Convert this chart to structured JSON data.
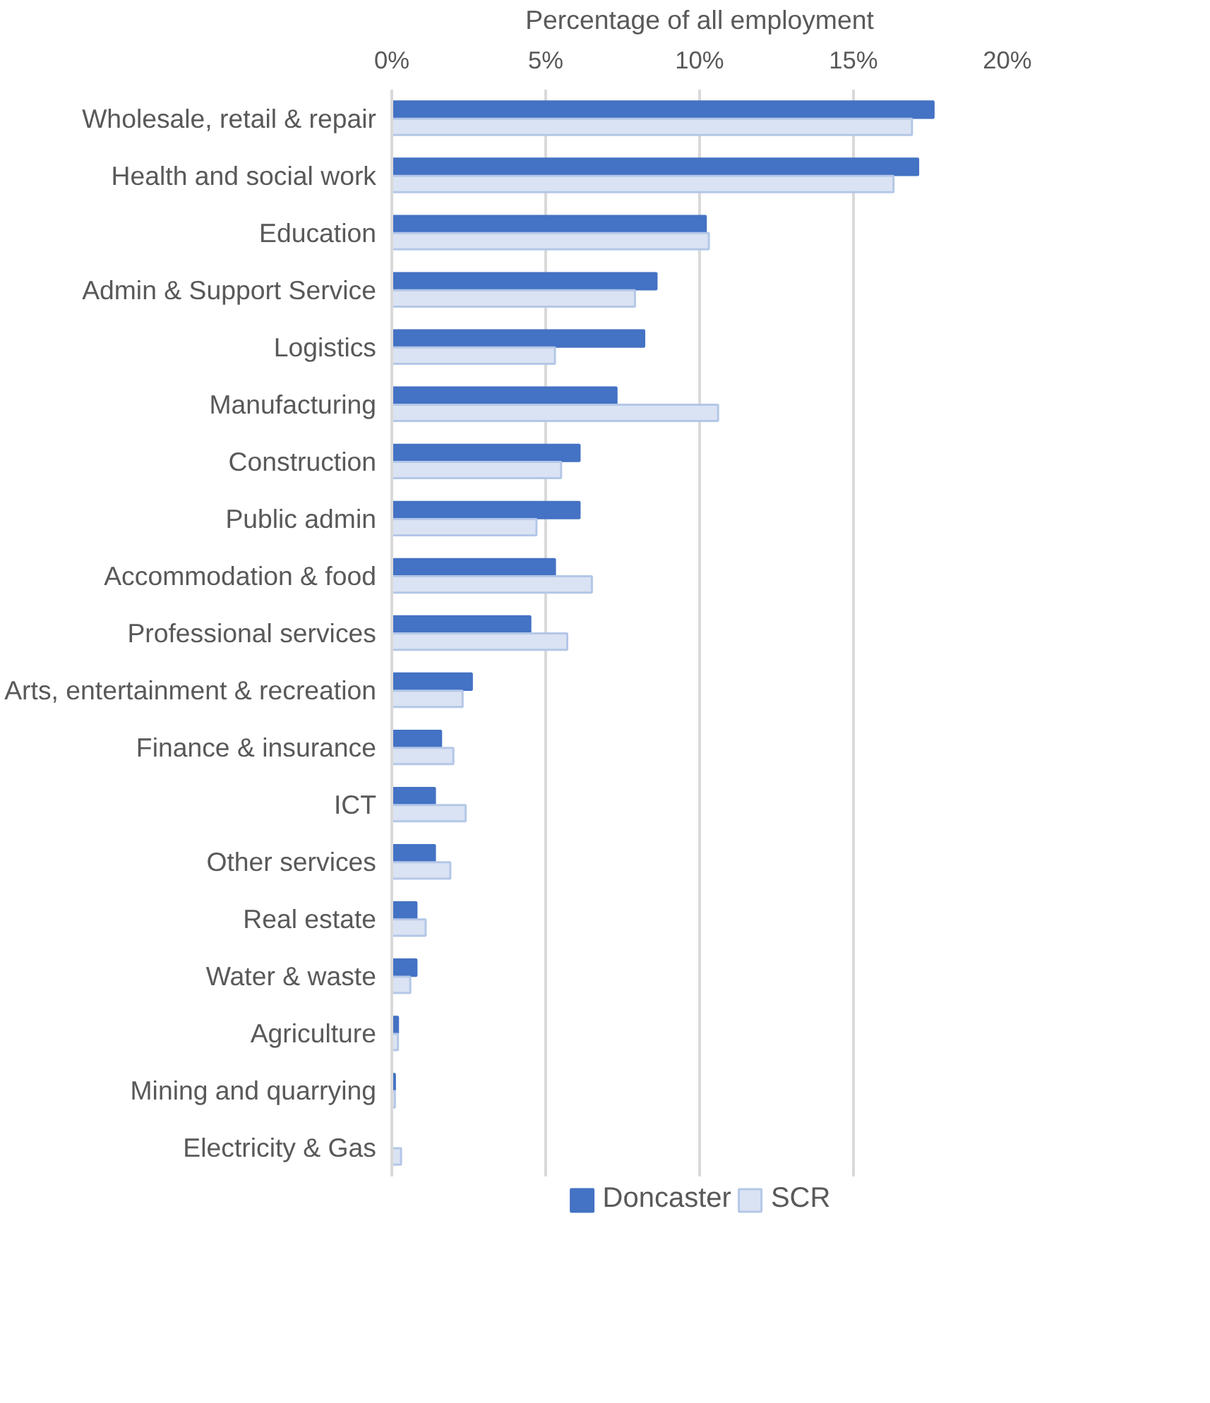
{
  "chart_data": {
    "type": "bar",
    "orientation": "horizontal",
    "xlabel": "Percentage of all employment",
    "categories": [
      "Wholesale, retail & repair",
      "Health and social work",
      "Education",
      "Admin & Support Service",
      "Logistics",
      "Manufacturing",
      "Construction",
      "Public admin",
      "Accommodation & food",
      "Professional services",
      "Arts, entertainment & recreation",
      "Finance & insurance",
      "ICT",
      "Other services",
      "Real estate",
      "Water & waste",
      "Agriculture",
      "Mining and quarrying",
      "Electricity & Gas"
    ],
    "series": [
      {
        "name": "Doncaster",
        "color": "#4472c4",
        "values": [
          17.6,
          17.1,
          10.2,
          8.6,
          8.2,
          7.3,
          6.1,
          6.1,
          5.3,
          4.5,
          2.6,
          1.6,
          1.4,
          1.4,
          0.8,
          0.8,
          0.2,
          0.1,
          0
        ]
      },
      {
        "name": "SCR",
        "color": "#dae3f3",
        "values": [
          16.9,
          16.3,
          10.3,
          7.9,
          5.3,
          10.6,
          5.5,
          4.7,
          6.5,
          5.7,
          2.3,
          2.0,
          2.4,
          1.9,
          1.1,
          0.6,
          0.2,
          0.1,
          0.3
        ]
      }
    ],
    "xlim": [
      0,
      20
    ],
    "xticks": [
      {
        "value": 0,
        "label": "0%"
      },
      {
        "value": 5,
        "label": "5%"
      },
      {
        "value": 10,
        "label": "10%"
      },
      {
        "value": 15,
        "label": "15%"
      },
      {
        "value": 20,
        "label": "20%"
      }
    ],
    "grid": "x",
    "legend": "bottom"
  }
}
